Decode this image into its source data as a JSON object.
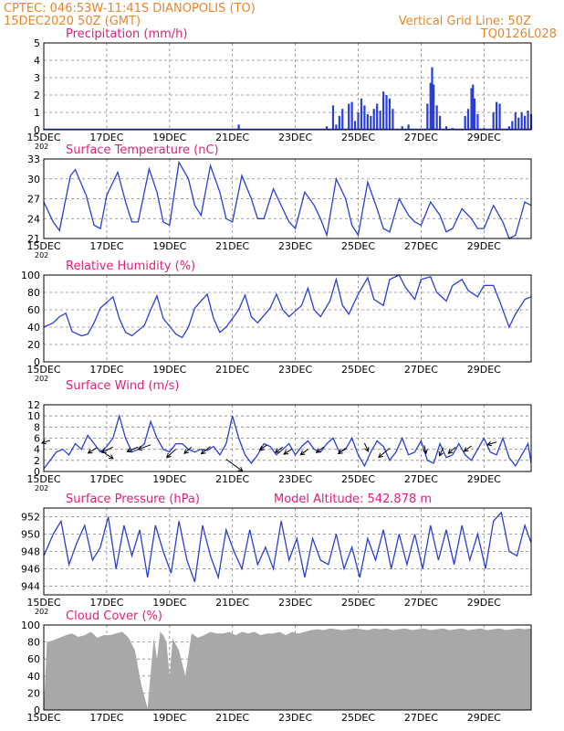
{
  "header": {
    "line1_left": "CPTEC:   046:53W-11:41S   DIANOPOLIS (TO)",
    "line2_left": "15DEC2020 50Z (GMT)",
    "line1_right": "Vertical Grid Line: 50Z",
    "line2_right": "TQ0126L028",
    "model_altitude": "Model Altitude: 542.878 m",
    "stub_label": "202"
  },
  "x_tick_labels": [
    "15DEC",
    "17DEC",
    "19DEC",
    "21DEC",
    "23DEC",
    "25DEC",
    "27DEC",
    "29DEC"
  ],
  "colors": {
    "series": "#2a3fd6",
    "header": "#e8862a",
    "panel_title": "#e0217a",
    "cloud_fill": "#a8a8a8",
    "arrow": "#000000"
  },
  "chart_data": [
    {
      "id": "precip",
      "type": "bar",
      "title": "Precipitation (mm/h)",
      "x_days": [
        0,
        15.5
      ],
      "ylim": [
        0,
        5
      ],
      "yticks": [
        0,
        1,
        2,
        3,
        4,
        5
      ],
      "grid": true,
      "values_by_day": [
        [
          0.0,
          0.0
        ],
        [
          1.0,
          0.0
        ],
        [
          2.0,
          0.0
        ],
        [
          3.0,
          0.0
        ],
        [
          4.0,
          0.0
        ],
        [
          5.0,
          0.0
        ],
        [
          6.0,
          0.05
        ],
        [
          6.2,
          0.3
        ],
        [
          6.5,
          0.0
        ],
        [
          7.0,
          0.0
        ],
        [
          8.0,
          0.0
        ],
        [
          9.0,
          0.2
        ],
        [
          9.2,
          1.4
        ],
        [
          9.3,
          0.3
        ],
        [
          9.4,
          0.8
        ],
        [
          9.5,
          1.2
        ],
        [
          9.6,
          0.0
        ],
        [
          9.7,
          1.5
        ],
        [
          9.8,
          1.6
        ],
        [
          9.9,
          0.5
        ],
        [
          10.0,
          1.0
        ],
        [
          10.1,
          1.8
        ],
        [
          10.2,
          1.4
        ],
        [
          10.3,
          0.9
        ],
        [
          10.4,
          0.8
        ],
        [
          10.5,
          1.2
        ],
        [
          10.6,
          1.5
        ],
        [
          10.7,
          1.1
        ],
        [
          10.8,
          2.2
        ],
        [
          10.9,
          2.0
        ],
        [
          11.0,
          1.8
        ],
        [
          11.1,
          1.2
        ],
        [
          11.2,
          0.0
        ],
        [
          11.4,
          0.2
        ],
        [
          11.6,
          0.3
        ],
        [
          11.8,
          0.0
        ],
        [
          12.0,
          0.0
        ],
        [
          12.2,
          1.5
        ],
        [
          12.3,
          2.7
        ],
        [
          12.35,
          3.6
        ],
        [
          12.4,
          2.6
        ],
        [
          12.5,
          1.4
        ],
        [
          12.6,
          0.8
        ],
        [
          12.7,
          0.0
        ],
        [
          12.8,
          0.2
        ],
        [
          13.0,
          0.1
        ],
        [
          13.2,
          0.0
        ],
        [
          13.4,
          0.8
        ],
        [
          13.5,
          1.2
        ],
        [
          13.6,
          2.4
        ],
        [
          13.65,
          2.6
        ],
        [
          13.7,
          1.8
        ],
        [
          13.8,
          0.9
        ],
        [
          13.9,
          0.0
        ],
        [
          14.0,
          0.1
        ],
        [
          14.2,
          0.0
        ],
        [
          14.3,
          1.0
        ],
        [
          14.4,
          1.6
        ],
        [
          14.5,
          1.5
        ],
        [
          14.6,
          0.0
        ],
        [
          14.8,
          0.2
        ],
        [
          14.9,
          0.5
        ],
        [
          15.0,
          1.0
        ],
        [
          15.1,
          0.7
        ],
        [
          15.2,
          1.0
        ],
        [
          15.3,
          0.8
        ],
        [
          15.4,
          1.1
        ],
        [
          15.5,
          0.9
        ]
      ]
    },
    {
      "id": "temp",
      "type": "line",
      "title": "Surface Temperature (nC)",
      "x_days": [
        0,
        15.5
      ],
      "ylim": [
        21,
        33
      ],
      "yticks": [
        21,
        24,
        27,
        30,
        33
      ],
      "grid": true,
      "x": [
        0,
        0.3,
        0.5,
        0.7,
        0.85,
        1.0,
        1.35,
        1.6,
        1.8,
        2.0,
        2.35,
        2.6,
        2.8,
        3.0,
        3.35,
        3.6,
        3.8,
        4.0,
        4.3,
        4.6,
        4.8,
        5.0,
        5.3,
        5.6,
        5.8,
        6.0,
        6.3,
        6.6,
        6.8,
        7.0,
        7.3,
        7.6,
        7.8,
        8.0,
        8.3,
        8.6,
        8.8,
        9.0,
        9.3,
        9.6,
        9.8,
        10.0,
        10.3,
        10.6,
        10.8,
        11.0,
        11.3,
        11.6,
        11.8,
        12.0,
        12.3,
        12.6,
        12.8,
        13.0,
        13.3,
        13.6,
        13.8,
        14.0,
        14.3,
        14.6,
        14.8,
        15.0,
        15.3,
        15.5
      ],
      "y": [
        26.5,
        23.5,
        22.2,
        27.0,
        30.5,
        31.4,
        27.5,
        23.0,
        22.5,
        27.5,
        31.0,
        26.5,
        23.5,
        23.5,
        31.5,
        28.0,
        23.5,
        23.0,
        32.5,
        30.0,
        26.0,
        24.5,
        32.0,
        28.0,
        24.0,
        23.5,
        30.5,
        27.0,
        24.0,
        24.0,
        28.5,
        25.5,
        23.5,
        22.5,
        28.0,
        26.0,
        24.0,
        21.5,
        30.0,
        27.0,
        23.0,
        21.5,
        29.5,
        25.5,
        22.5,
        22.0,
        27.0,
        24.5,
        23.5,
        23.0,
        26.5,
        24.5,
        22.0,
        22.5,
        25.5,
        24.0,
        22.5,
        22.5,
        26.0,
        23.5,
        21.0,
        21.5,
        26.5,
        26.0
      ]
    },
    {
      "id": "rh",
      "type": "line",
      "title": "Relative Humidity (%)",
      "x_days": [
        0,
        15.5
      ],
      "ylim": [
        0,
        100
      ],
      "yticks": [
        0,
        20,
        40,
        60,
        80,
        100
      ],
      "grid": true,
      "x": [
        0,
        0.3,
        0.5,
        0.7,
        0.9,
        1.2,
        1.4,
        1.6,
        1.8,
        2.2,
        2.4,
        2.6,
        2.8,
        3.2,
        3.4,
        3.6,
        3.8,
        4.2,
        4.4,
        4.6,
        4.8,
        5.2,
        5.4,
        5.6,
        5.8,
        6.2,
        6.4,
        6.6,
        6.8,
        7.2,
        7.4,
        7.6,
        7.8,
        8.2,
        8.4,
        8.6,
        8.8,
        9.1,
        9.3,
        9.5,
        9.7,
        10.0,
        10.3,
        10.5,
        10.8,
        11.0,
        11.3,
        11.5,
        11.8,
        12.0,
        12.3,
        12.5,
        12.8,
        13.0,
        13.3,
        13.5,
        13.8,
        14.0,
        14.3,
        14.5,
        14.8,
        15.0,
        15.3,
        15.5
      ],
      "y": [
        40,
        45,
        52,
        56,
        35,
        30,
        32,
        45,
        62,
        75,
        50,
        34,
        30,
        42,
        60,
        76,
        50,
        32,
        28,
        40,
        62,
        78,
        50,
        34,
        40,
        60,
        77,
        52,
        45,
        62,
        78,
        60,
        52,
        65,
        85,
        60,
        52,
        70,
        95,
        65,
        55,
        78,
        97,
        72,
        65,
        95,
        100,
        86,
        72,
        95,
        98,
        80,
        70,
        88,
        95,
        82,
        75,
        88,
        88,
        70,
        40,
        55,
        72,
        75
      ]
    },
    {
      "id": "wind",
      "type": "line",
      "title": "Surface Wind (m/s)",
      "x_days": [
        0,
        15.5
      ],
      "ylim": [
        0,
        12
      ],
      "yticks": [
        0,
        2,
        4,
        6,
        8,
        10,
        12
      ],
      "grid": true,
      "x": [
        0,
        0.2,
        0.4,
        0.6,
        0.8,
        1.0,
        1.2,
        1.4,
        1.6,
        1.8,
        2.0,
        2.2,
        2.4,
        2.6,
        2.8,
        3.0,
        3.2,
        3.4,
        3.6,
        3.8,
        4.0,
        4.2,
        4.4,
        4.6,
        4.8,
        5.0,
        5.2,
        5.4,
        5.6,
        5.8,
        6.0,
        6.2,
        6.4,
        6.6,
        6.8,
        7.0,
        7.2,
        7.4,
        7.6,
        7.8,
        8.0,
        8.2,
        8.4,
        8.6,
        8.8,
        9.0,
        9.2,
        9.4,
        9.6,
        9.8,
        10.0,
        10.2,
        10.4,
        10.6,
        10.8,
        11.0,
        11.2,
        11.4,
        11.6,
        11.8,
        12.0,
        12.2,
        12.4,
        12.6,
        12.8,
        13.0,
        13.2,
        13.4,
        13.6,
        13.8,
        14.0,
        14.2,
        14.4,
        14.6,
        14.8,
        15.0,
        15.2,
        15.4,
        15.5
      ],
      "y": [
        0.5,
        2,
        3.5,
        4,
        3,
        5,
        4,
        6.5,
        5,
        3.5,
        4.5,
        6,
        10,
        6,
        3.5,
        4,
        5,
        9,
        6,
        4,
        3.5,
        5,
        5,
        4,
        3.5,
        4,
        3.8,
        4.5,
        3,
        5,
        10,
        6,
        3,
        1.5,
        3,
        5,
        4.5,
        3,
        4,
        5,
        3,
        4.5,
        5.5,
        4,
        3.5,
        5,
        6,
        3.5,
        4,
        6,
        3,
        1,
        3.5,
        5.5,
        4.5,
        2,
        3.5,
        6,
        3,
        3.5,
        5.5,
        2,
        1.5,
        5,
        2.5,
        3,
        5,
        3,
        2,
        4,
        6,
        3.5,
        3,
        6,
        2.5,
        1,
        3,
        5,
        1.5
      ]
    },
    {
      "id": "pressure",
      "type": "line",
      "title": "Surface Pressure (hPa)",
      "x_days": [
        0,
        15.5
      ],
      "ylim": [
        943,
        953
      ],
      "yticks": [
        944,
        946,
        948,
        950,
        952
      ],
      "grid": true,
      "x": [
        0,
        0.3,
        0.55,
        0.8,
        1.05,
        1.3,
        1.55,
        1.8,
        2.05,
        2.3,
        2.55,
        2.8,
        3.05,
        3.3,
        3.55,
        3.8,
        4.05,
        4.3,
        4.55,
        4.8,
        5.05,
        5.3,
        5.55,
        5.8,
        6.05,
        6.3,
        6.55,
        6.8,
        7.05,
        7.3,
        7.55,
        7.8,
        8.05,
        8.3,
        8.55,
        8.8,
        9.05,
        9.3,
        9.55,
        9.8,
        10.05,
        10.3,
        10.55,
        10.8,
        11.05,
        11.3,
        11.55,
        11.8,
        12.05,
        12.3,
        12.55,
        12.8,
        13.05,
        13.3,
        13.55,
        13.8,
        14.05,
        14.3,
        14.55,
        14.8,
        15.05,
        15.3,
        15.5
      ],
      "y": [
        947.5,
        950,
        951.5,
        946.5,
        949,
        951,
        947,
        948.5,
        952,
        946,
        951,
        947.5,
        950.5,
        945,
        951,
        948,
        945.5,
        951.5,
        947,
        944.5,
        951,
        947.5,
        945,
        950.5,
        948,
        946,
        950.5,
        946.5,
        948.5,
        946,
        951.5,
        947,
        949.5,
        945,
        949.5,
        947,
        946.5,
        950,
        946,
        948.5,
        945,
        949.5,
        947,
        950.5,
        946,
        950,
        946.5,
        950,
        946,
        951,
        947,
        950.5,
        946.5,
        951,
        947,
        950,
        946,
        951.5,
        952.5,
        948,
        947.5,
        951,
        949
      ]
    },
    {
      "id": "cloud",
      "type": "area",
      "title": "Cloud Cover (%)",
      "x_days": [
        0,
        15.5
      ],
      "ylim": [
        0,
        100
      ],
      "yticks": [
        0,
        20,
        40,
        60,
        80,
        100
      ],
      "grid": true,
      "x": [
        0,
        0.1,
        0.3,
        0.5,
        0.7,
        0.9,
        1.1,
        1.3,
        1.5,
        1.7,
        1.9,
        2.1,
        2.3,
        2.5,
        2.7,
        2.9,
        3.1,
        3.3,
        3.5,
        3.6,
        3.7,
        3.8,
        3.9,
        4.0,
        4.1,
        4.3,
        4.5,
        4.7,
        4.9,
        5.1,
        5.3,
        5.5,
        5.7,
        5.9,
        6.1,
        6.3,
        6.5,
        6.7,
        6.9,
        7.1,
        7.3,
        7.5,
        7.7,
        7.9,
        8.1,
        8.3,
        8.5,
        8.7,
        8.9,
        9.1,
        9.3,
        9.5,
        9.7,
        9.9,
        10.1,
        10.3,
        10.5,
        10.7,
        10.9,
        11.1,
        11.3,
        11.5,
        11.7,
        11.9,
        12.1,
        12.3,
        12.5,
        12.7,
        12.9,
        13.1,
        13.3,
        13.5,
        13.7,
        13.9,
        14.1,
        14.3,
        14.5,
        14.7,
        14.9,
        15.1,
        15.3,
        15.5
      ],
      "y": [
        2,
        80,
        82,
        85,
        88,
        90,
        86,
        88,
        92,
        85,
        88,
        88,
        90,
        92,
        85,
        70,
        30,
        2,
        85,
        60,
        92,
        88,
        80,
        40,
        84,
        70,
        40,
        90,
        85,
        88,
        92,
        90,
        90,
        92,
        88,
        92,
        90,
        92,
        88,
        90,
        90,
        92,
        88,
        92,
        90,
        92,
        94,
        95,
        94,
        96,
        95,
        94,
        95,
        96,
        95,
        94,
        96,
        95,
        96,
        94,
        95,
        96,
        94,
        95,
        96,
        94,
        95,
        96,
        94,
        95,
        96,
        94,
        95,
        96,
        94,
        95,
        96,
        94,
        95,
        96,
        95,
        96
      ]
    }
  ]
}
